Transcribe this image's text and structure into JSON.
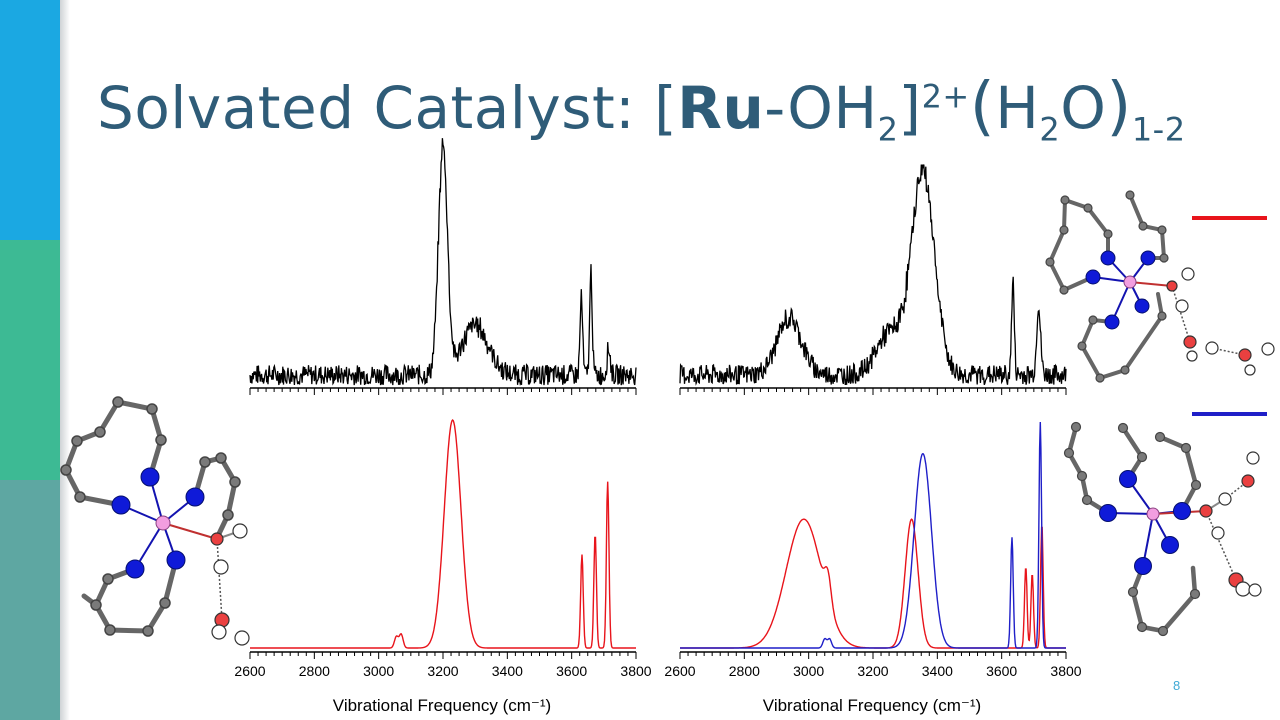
{
  "slide": {
    "title": {
      "prefix": "Solvated Catalyst: [",
      "bold": "Ru",
      "dash": "-OH",
      "sub1": "2",
      "close": "]",
      "sup": "2+",
      "paren_open": "(",
      "h": "H",
      "sub2": "2",
      "o": "O",
      "paren_close": ")",
      "sub3": "1-2"
    },
    "page_number": "8",
    "colors": {
      "bar_top": "#1ba8e2",
      "bar_mid": "#3dba94",
      "bar_bottom": "#5ea7a2",
      "title": "#2f5c78",
      "legend_red": "#e8141b",
      "legend_blue": "#1f1fc8"
    },
    "icons": [
      "ru-complex-structure-left",
      "ru-complex-structure-top-right",
      "ru-complex-structure-bottom-right"
    ]
  },
  "chart_data": [
    {
      "type": "line",
      "panel": "left-experimental",
      "xlim": [
        2600,
        3800
      ],
      "series": [
        {
          "color": "#000000",
          "peaks": [
            [
              3200,
              1.0,
              14
            ],
            [
              3300,
              0.22,
              40
            ],
            [
              3630,
              0.34,
              4
            ],
            [
              3660,
              0.45,
              4
            ],
            [
              3715,
              0.12,
              5
            ]
          ]
        }
      ]
    },
    {
      "type": "line",
      "panel": "right-experimental",
      "xlim": [
        2600,
        3800
      ],
      "series": [
        {
          "color": "#000000",
          "peaks": [
            [
              2940,
              0.25,
              38
            ],
            [
              3250,
              0.18,
              40
            ],
            [
              3355,
              0.9,
              36
            ],
            [
              3635,
              0.42,
              4
            ],
            [
              3715,
              0.3,
              6
            ]
          ]
        }
      ]
    },
    {
      "type": "line",
      "panel": "left-calculated",
      "xlim": [
        2600,
        3800
      ],
      "xlabel": "Vibrational Frequency (cm⁻¹)",
      "xticks": [
        2600,
        2800,
        3000,
        3200,
        3400,
        3600,
        3800
      ],
      "series": [
        {
          "color": "#e8141b",
          "peaks": [
            [
              3055,
              0.05,
              6
            ],
            [
              3070,
              0.06,
              6
            ],
            [
              3230,
              1.0,
              26
            ],
            [
              3632,
              0.41,
              4
            ],
            [
              3673,
              0.5,
              4
            ],
            [
              3712,
              0.73,
              4
            ]
          ]
        }
      ]
    },
    {
      "type": "line",
      "panel": "right-calculated",
      "xlim": [
        2600,
        3800
      ],
      "xlabel": "Vibrational Frequency (cm⁻¹)",
      "xticks": [
        2600,
        2800,
        3000,
        3200,
        3400,
        3600,
        3800
      ],
      "series": [
        {
          "color": "#e8141b",
          "peaks": [
            [
              2985,
              0.57,
              55
            ],
            [
              3060,
              0.12,
              10
            ],
            [
              3320,
              0.57,
              20
            ],
            [
              3675,
              0.36,
              4
            ],
            [
              3695,
              0.33,
              4
            ],
            [
              3725,
              0.55,
              4
            ]
          ]
        },
        {
          "color": "#1f1fc8",
          "peaks": [
            [
              3050,
              0.04,
              6
            ],
            [
              3065,
              0.04,
              6
            ],
            [
              3355,
              0.86,
              27
            ],
            [
              3632,
              0.49,
              4
            ],
            [
              3720,
              1.0,
              4
            ]
          ]
        }
      ]
    }
  ]
}
